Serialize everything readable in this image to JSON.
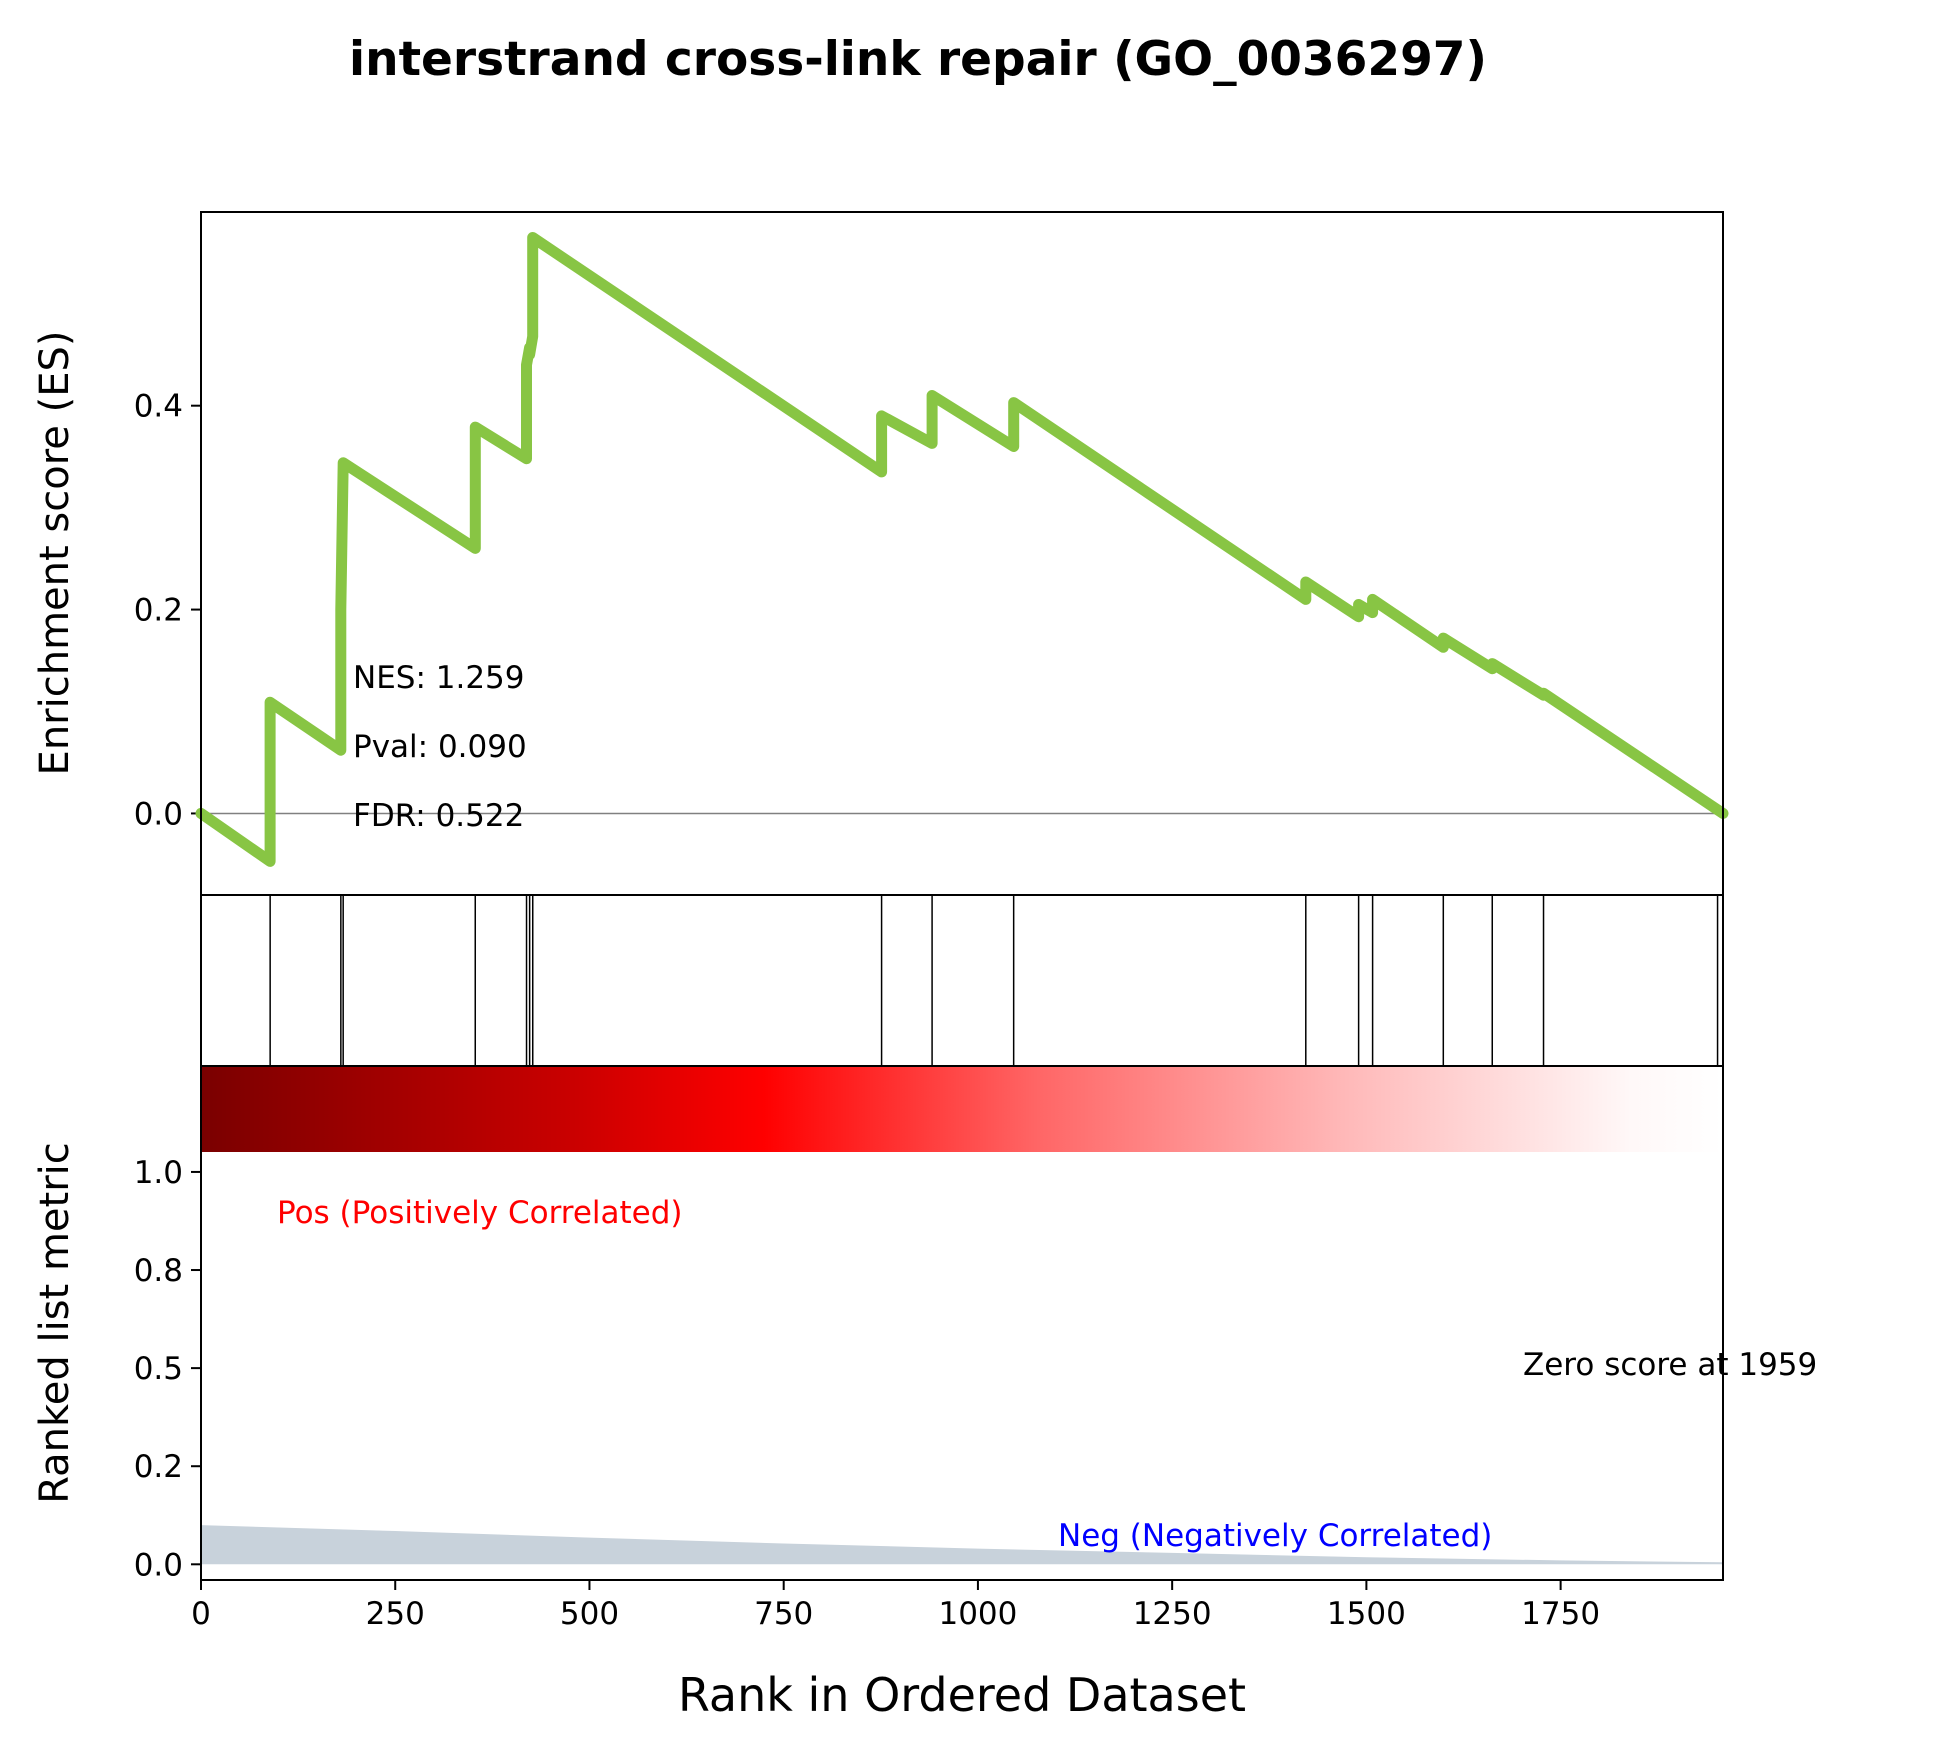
{
  "chart_data": {
    "type": "line",
    "title": "interstrand cross-link repair (GO_0036297)",
    "xlabel": "Rank in Ordered Dataset",
    "xlim": [
      0,
      1959
    ],
    "x_ticks": [
      0,
      250,
      500,
      750,
      1000,
      1250,
      1500,
      1750
    ],
    "es_panel": {
      "ylabel": "Enrichment score (ES)",
      "ylim": [
        -0.08,
        0.59
      ],
      "y_ticks": [
        0.0,
        0.2,
        0.4
      ],
      "y_tick_labels": [
        "0.0",
        "0.2",
        "0.4"
      ],
      "line_color": "#88c544",
      "series": [
        {
          "x": [
            0,
            89,
            89,
            180,
            180,
            183,
            353,
            353,
            419,
            419,
            423,
            423,
            427,
            427,
            876,
            876,
            941,
            941,
            1046,
            1046,
            1422,
            1422,
            1490,
            1490,
            1508,
            1508,
            1599,
            1599,
            1662,
            1662,
            1728,
            1728,
            1959
          ],
          "y": [
            0.0,
            -0.047,
            0.109,
            0.062,
            0.2,
            0.344,
            0.26,
            0.379,
            0.348,
            0.44,
            0.457,
            0.45,
            0.468,
            0.565,
            0.335,
            0.39,
            0.363,
            0.41,
            0.36,
            0.403,
            0.21,
            0.227,
            0.193,
            0.205,
            0.197,
            0.21,
            0.163,
            0.172,
            0.142,
            0.147,
            0.116,
            0.118,
            0.0
          ]
        }
      ],
      "annotations": [
        "NES: 1.259",
        "Pval: 0.090",
        "FDR: 0.522"
      ]
    },
    "hits_panel": {
      "hit_positions": [
        89,
        180,
        183,
        353,
        419,
        423,
        427,
        876,
        941,
        1046,
        1422,
        1490,
        1508,
        1599,
        1662,
        1728,
        1952
      ]
    },
    "metric_panel": {
      "ylabel": "Ranked list metric",
      "ylim": [
        -0.04,
        1.27
      ],
      "y_ticks": [
        0.0,
        0.25,
        0.5,
        0.75,
        1.0
      ],
      "y_tick_labels": [
        "0.0",
        "0.2",
        "0.5",
        "0.8",
        "1.0"
      ],
      "metric_x": [
        0,
        250,
        500,
        750,
        1000,
        1250,
        1500,
        1750,
        1959
      ],
      "metric_y": [
        0.1,
        0.085,
        0.068,
        0.053,
        0.04,
        0.029,
        0.018,
        0.01,
        0.005
      ],
      "fill_color": "#c8d2db",
      "pos_label": "Pos (Positively Correlated)",
      "pos_color": "#ff0000",
      "neg_label": "Neg (Negatively Correlated)",
      "neg_color": "#0000ff",
      "zero_score_label": "Zero score at 1959"
    }
  }
}
